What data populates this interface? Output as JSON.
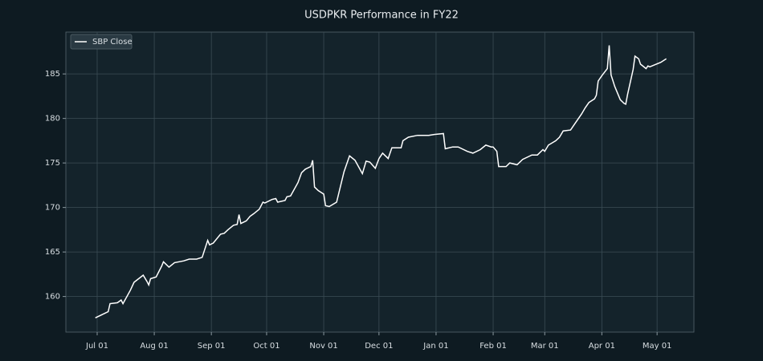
{
  "chart_data": {
    "type": "line",
    "title": "USDPKR Performance in FY22",
    "x": [
      "Jun 30",
      "Jul 05",
      "Jul 07",
      "Jul 08",
      "Jul 12",
      "Jul 14",
      "Jul 15",
      "Jul 19",
      "Jul 21",
      "Jul 26",
      "Jul 28",
      "Jul 29",
      "Jul 30",
      "Aug 02",
      "Aug 05",
      "Aug 06",
      "Aug 09",
      "Aug 12",
      "Aug 17",
      "Aug 20",
      "Aug 24",
      "Aug 27",
      "Aug 30",
      "Aug 31",
      "Sep 02",
      "Sep 06",
      "Sep 08",
      "Sep 10",
      "Sep 13",
      "Sep 15",
      "Sep 16",
      "Sep 17",
      "Sep 20",
      "Sep 22",
      "Sep 24",
      "Sep 27",
      "Sep 29",
      "Sep 30",
      "Oct 04",
      "Oct 06",
      "Oct 07",
      "Oct 11",
      "Oct 12",
      "Oct 14",
      "Oct 18",
      "Oct 20",
      "Oct 22",
      "Oct 25",
      "Oct 26",
      "Oct 27",
      "Oct 29",
      "Nov 01",
      "Nov 02",
      "Nov 04",
      "Nov 08",
      "Nov 12",
      "Nov 15",
      "Nov 18",
      "Nov 22",
      "Nov 24",
      "Nov 26",
      "Nov 29",
      "Dec 01",
      "Dec 03",
      "Dec 06",
      "Dec 08",
      "Dec 13",
      "Dec 14",
      "Dec 17",
      "Dec 22",
      "Dec 28",
      "Dec 31",
      "Jan 05",
      "Jan 06",
      "Jan 10",
      "Jan 13",
      "Jan 18",
      "Jan 21",
      "Jan 25",
      "Jan 28",
      "Jan 31",
      "Feb 01",
      "Feb 03",
      "Feb 04",
      "Feb 08",
      "Feb 10",
      "Feb 14",
      "Feb 17",
      "Feb 22",
      "Feb 25",
      "Feb 28",
      "Mar 01",
      "Mar 03",
      "Mar 07",
      "Mar 09",
      "Mar 11",
      "Mar 15",
      "Mar 17",
      "Mar 21",
      "Mar 23",
      "Mar 25",
      "Mar 28",
      "Mar 29",
      "Mar 30",
      "Apr 01",
      "Apr 04",
      "Apr 05",
      "Apr 06",
      "Apr 08",
      "Apr 11",
      "Apr 13",
      "Apr 14",
      "Apr 15",
      "Apr 18",
      "Apr 19",
      "Apr 21",
      "Apr 22",
      "Apr 25",
      "Apr 26",
      "Apr 27",
      "May 03",
      "May 06"
    ],
    "series": [
      {
        "name": "SBP Close",
        "color": "#ffffff",
        "values": [
          157.6,
          158.1,
          158.3,
          159.2,
          159.3,
          159.6,
          159.2,
          160.7,
          161.6,
          162.4,
          161.7,
          161.3,
          162.0,
          162.2,
          163.4,
          163.9,
          163.3,
          163.8,
          164.0,
          164.2,
          164.2,
          164.4,
          166.3,
          165.8,
          166.0,
          167.0,
          167.1,
          167.5,
          168.0,
          168.1,
          169.2,
          168.2,
          168.5,
          169.0,
          169.3,
          169.8,
          170.6,
          170.5,
          170.9,
          171.0,
          170.6,
          170.8,
          171.2,
          171.3,
          172.8,
          173.9,
          174.3,
          174.6,
          175.3,
          172.3,
          171.9,
          171.5,
          170.2,
          170.1,
          170.6,
          174.0,
          175.8,
          175.3,
          173.8,
          175.2,
          175.1,
          174.4,
          175.5,
          176.1,
          175.5,
          176.7,
          176.7,
          177.5,
          177.9,
          178.1,
          178.1,
          178.2,
          178.3,
          176.6,
          176.8,
          176.8,
          176.3,
          176.1,
          176.5,
          177.0,
          176.8,
          176.8,
          176.3,
          174.6,
          174.6,
          175.0,
          174.8,
          175.4,
          175.9,
          175.9,
          176.5,
          176.3,
          177.0,
          177.5,
          177.9,
          178.6,
          178.7,
          179.3,
          180.5,
          181.2,
          181.8,
          182.2,
          182.6,
          184.2,
          184.8,
          185.6,
          188.2,
          184.9,
          183.6,
          182.1,
          181.7,
          181.6,
          182.7,
          185.5,
          187.0,
          186.7,
          186.1,
          185.6,
          185.9,
          185.8,
          186.3,
          186.7
        ]
      }
    ],
    "xlim": [
      "Jun 14",
      "May 21"
    ],
    "xticks": [
      "Jul 01",
      "Aug 01",
      "Sep 01",
      "Oct 01",
      "Nov 01",
      "Dec 01",
      "Jan 01",
      "Feb 01",
      "Mar 01",
      "Apr 01",
      "May 01"
    ],
    "ylim": [
      156,
      189.7
    ],
    "yticks": [
      160,
      165,
      170,
      175,
      180,
      185
    ],
    "grid": true,
    "legend": "upper left"
  }
}
